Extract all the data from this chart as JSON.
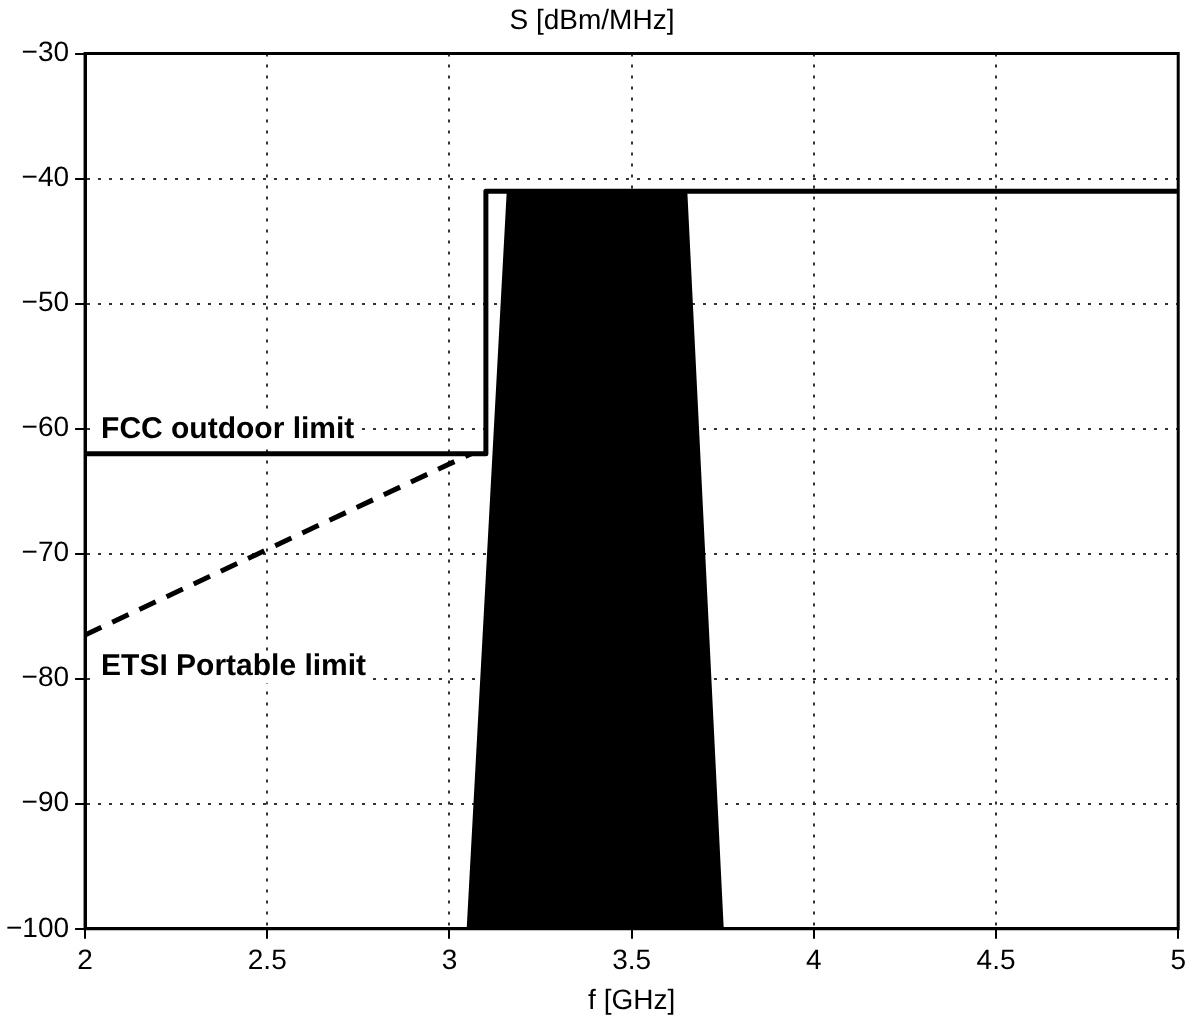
{
  "chart_data": {
    "type": "line",
    "title": "S [dBm/MHz]",
    "xlabel": "f [GHz]",
    "xlim": [
      2,
      5
    ],
    "xticks": [
      2,
      2.5,
      3,
      3.5,
      4,
      4.5,
      5
    ],
    "ylim": [
      -100,
      -30
    ],
    "yticks": [
      -100,
      -90,
      -80,
      -70,
      -60,
      -50,
      -40,
      -30
    ],
    "grid": true,
    "legend": false,
    "marker": "none",
    "series": [
      {
        "type": "area",
        "color": "#000000",
        "x": [
          3.05,
          3.16,
          3.65,
          3.75
        ],
        "values": [
          -100,
          -41,
          -41,
          -100
        ]
      },
      {
        "type": "line",
        "color": "#000000",
        "line_style": "solid",
        "x": [
          2,
          3.1,
          3.1,
          5
        ],
        "values": [
          -62,
          -62,
          -41,
          -41
        ]
      },
      {
        "type": "line",
        "color": "#000000",
        "line_style": "dashed",
        "x": [
          2,
          3.06
        ],
        "values": [
          -76.5,
          -62
        ]
      }
    ],
    "annotations": [
      "FCC outdoor limit",
      "ETSI Portable limit"
    ]
  }
}
